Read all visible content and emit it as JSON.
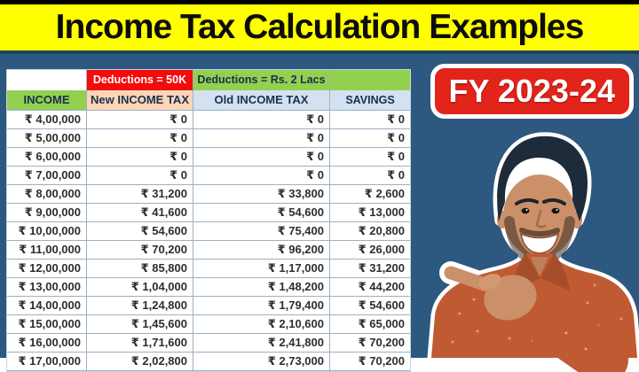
{
  "title": "Income Tax Calculation Examples",
  "badge": {
    "label": "FY 2023-24"
  },
  "table": {
    "deduction_headers": {
      "income_spacer": "",
      "new_regime": "Deductions = 50K",
      "old_regime": "Deductions = Rs. 2 Lacs",
      "savings_spacer": ""
    },
    "columns": [
      "INCOME",
      "New INCOME TAX",
      "Old INCOME TAX",
      "SAVINGS"
    ],
    "rows": [
      [
        "₹ 4,00,000",
        "₹ 0",
        "₹ 0",
        "₹ 0"
      ],
      [
        "₹ 5,00,000",
        "₹ 0",
        "₹ 0",
        "₹ 0"
      ],
      [
        "₹ 6,00,000",
        "₹ 0",
        "₹ 0",
        "₹ 0"
      ],
      [
        "₹ 7,00,000",
        "₹ 0",
        "₹ 0",
        "₹ 0"
      ],
      [
        "₹ 8,00,000",
        "₹ 31,200",
        "₹ 33,800",
        "₹ 2,600"
      ],
      [
        "₹ 9,00,000",
        "₹ 41,600",
        "₹ 54,600",
        "₹ 13,000"
      ],
      [
        "₹ 10,00,000",
        "₹ 54,600",
        "₹ 75,400",
        "₹ 20,800"
      ],
      [
        "₹ 11,00,000",
        "₹ 70,200",
        "₹ 96,200",
        "₹ 26,000"
      ],
      [
        "₹ 12,00,000",
        "₹ 85,800",
        "₹ 1,17,000",
        "₹ 31,200"
      ],
      [
        "₹ 13,00,000",
        "₹ 1,04,000",
        "₹ 1,48,200",
        "₹ 44,200"
      ],
      [
        "₹ 14,00,000",
        "₹ 1,24,800",
        "₹ 1,79,400",
        "₹ 54,600"
      ],
      [
        "₹ 15,00,000",
        "₹ 1,45,600",
        "₹ 2,10,600",
        "₹ 65,000"
      ],
      [
        "₹ 16,00,000",
        "₹ 1,71,600",
        "₹ 2,41,800",
        "₹ 70,200"
      ],
      [
        "₹ 17,00,000",
        "₹ 2,02,800",
        "₹ 2,73,000",
        "₹ 70,200"
      ]
    ]
  },
  "icons": {
    "person": "man-pointing-left-icon"
  },
  "colors": {
    "navy": "#2d5880",
    "yellow": "#ffff00",
    "title_text": "#0d0d0d",
    "divider_navy": "#1d4066",
    "badge_red": "#e3241b",
    "cell_red": "#f40b0b",
    "cell_green": "#92d050",
    "cell_peach": "#fbd5b5",
    "cell_blue": "#d3e1f1",
    "header_text": "#1b2f4e",
    "data_text": "#2d2d2d",
    "grid_line": "#9db0c4",
    "shirt": "#c05a33",
    "shirt_dark": "#a64e2a",
    "skin": "#cb9069",
    "hair": "#1d2b3a"
  }
}
